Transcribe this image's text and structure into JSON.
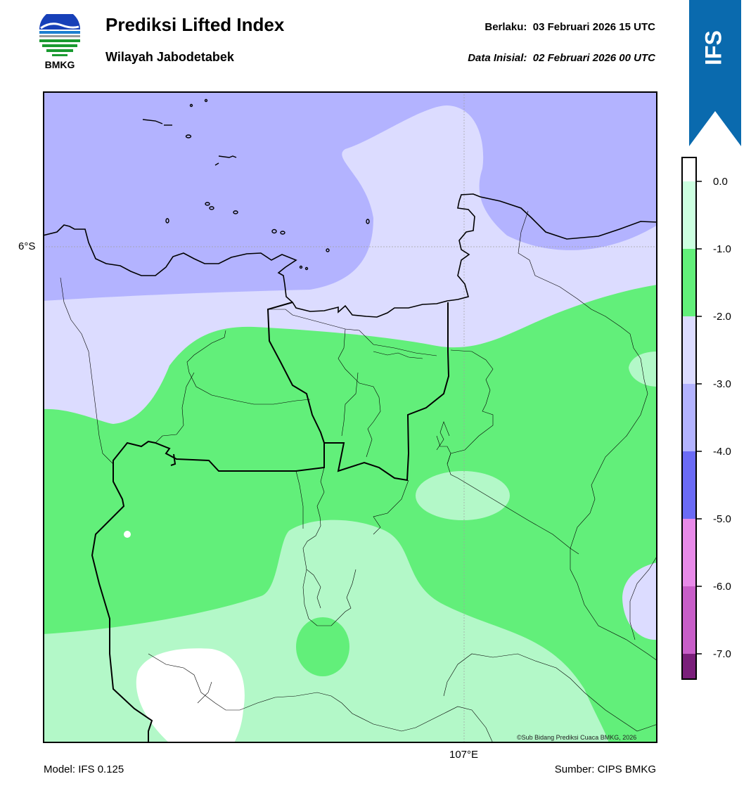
{
  "header": {
    "logo_text": "BMKG",
    "title": "Prediksi Lifted Index",
    "subtitle": "Wilayah Jabodetabek",
    "valid_label": "Berlaku:",
    "valid_value": "03 Februari 2026 15 UTC",
    "init_label": "Data Inisial:",
    "init_value": "02 Februari 2026 00 UTC",
    "badge": "IFS"
  },
  "map": {
    "lat_label": "6°S",
    "lon_label": "107°E",
    "credit": "©Sub Bidang Prediksi Cuaca BMKG, 2026",
    "colors": {
      "li_-4_-3": "#b3b3ff",
      "li_-3_-2": "#dcdcff",
      "li_-2_-1": "#62ef7a",
      "li_-1_0": "#b3f8c8",
      "li_gt0": "#ffffff"
    }
  },
  "colorbar": {
    "ticks": [
      "0.0",
      "-1.0",
      "-2.0",
      "-3.0",
      "-4.0",
      "-5.0",
      "-6.0",
      "-7.0"
    ],
    "colors": [
      "#ccffe0",
      "#62ef7a",
      "#dcdcff",
      "#b3b3ff",
      "#6b6bf5",
      "#e88ae8",
      "#c85ec8",
      "#a03aa0",
      "#7a1f7a"
    ]
  },
  "footer": {
    "model": "Model: IFS 0.125",
    "source": "Sumber: CIPS BMKG"
  }
}
